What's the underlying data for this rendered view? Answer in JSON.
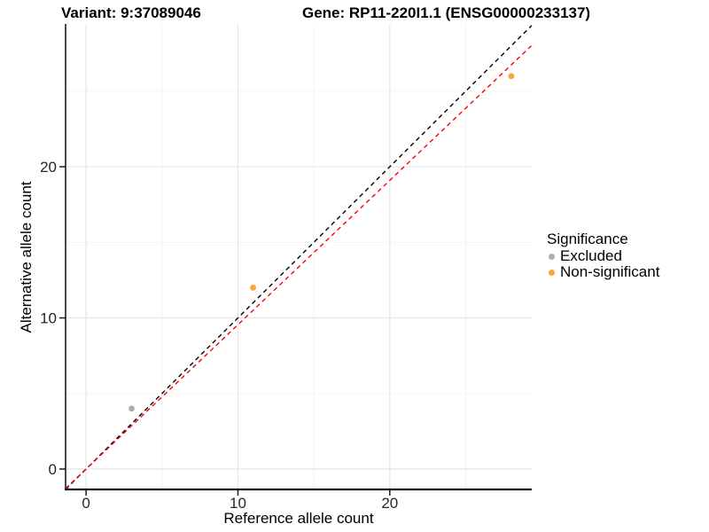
{
  "header": {
    "title_left": "Variant: 9:37089046",
    "title_right": "Gene: RP11-220I1.1 (ENSG00000233137)"
  },
  "chart_data": {
    "type": "scatter",
    "xlabel": "Reference allele count",
    "ylabel": "Alternative allele count",
    "xlim": [
      -1.35,
      29.35
    ],
    "ylim": [
      -1.35,
      29.45
    ],
    "x_ticks_major": [
      0,
      10,
      20
    ],
    "x_ticks_minor": [
      5,
      15,
      25
    ],
    "y_ticks_major": [
      0,
      10,
      20
    ],
    "y_ticks_minor": [
      5,
      15,
      25
    ],
    "grid": true,
    "points": [
      {
        "x": 3,
        "y": 4,
        "group": "Excluded"
      },
      {
        "x": 11,
        "y": 12,
        "group": "Non-significant"
      },
      {
        "x": 28,
        "y": 26,
        "group": "Non-significant"
      }
    ],
    "lines": [
      {
        "name": "identity-line",
        "slope": 1.0,
        "intercept": 0,
        "style": "dashed",
        "color": "#000000"
      },
      {
        "name": "fit-line",
        "slope": 0.955,
        "intercept": 0,
        "style": "dashed",
        "color": "#FF0000"
      }
    ],
    "legend": {
      "title": "Significance",
      "position": "right",
      "items": [
        {
          "label": "Excluded",
          "color": "#ADADAD"
        },
        {
          "label": "Non-significant",
          "color": "#FAA43A"
        }
      ]
    }
  },
  "colors": {
    "background": "#FFFFFF",
    "axis_line": "#1A1A1A",
    "tick_text": "#262626",
    "grid_major": "#E5E5E5",
    "grid_minor": "#F1F1F1"
  }
}
